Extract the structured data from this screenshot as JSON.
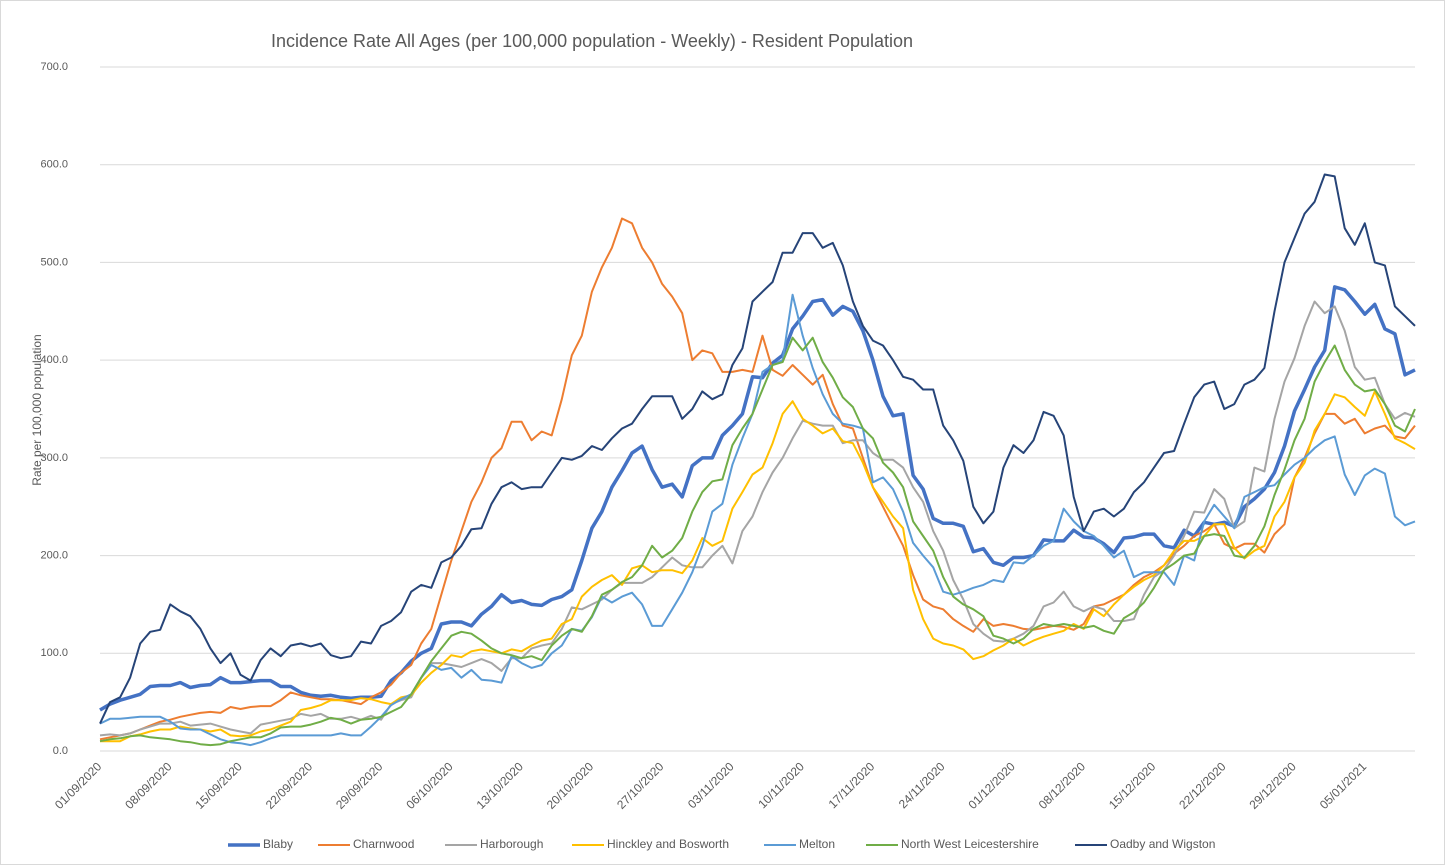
{
  "chart_data": {
    "type": "line",
    "title": "Incidence Rate All Ages (per 100,000 population - Weekly) - Resident Population",
    "y_label": "Rate per 100,000 population",
    "categories": [
      "01/09/2020",
      null,
      null,
      null,
      null,
      null,
      null,
      "08/09/2020",
      null,
      null,
      null,
      null,
      null,
      null,
      "15/09/2020",
      null,
      null,
      null,
      null,
      null,
      null,
      "22/09/2020",
      null,
      null,
      null,
      null,
      null,
      null,
      "29/09/2020",
      null,
      null,
      null,
      null,
      null,
      null,
      "06/10/2020",
      null,
      null,
      null,
      null,
      null,
      null,
      "13/10/2020",
      null,
      null,
      null,
      null,
      null,
      null,
      "20/10/2020",
      null,
      null,
      null,
      null,
      null,
      null,
      "27/10/2020",
      null,
      null,
      null,
      null,
      null,
      null,
      "03/11/2020",
      null,
      null,
      null,
      null,
      null,
      null,
      "10/11/2020",
      null,
      null,
      null,
      null,
      null,
      null,
      "17/11/2020",
      null,
      null,
      null,
      null,
      null,
      null,
      "24/11/2020",
      null,
      null,
      null,
      null,
      null,
      null,
      "01/12/2020",
      null,
      null,
      null,
      null,
      null,
      null,
      "08/12/2020",
      null,
      null,
      null,
      null,
      null,
      null,
      "15/12/2020",
      null,
      null,
      null,
      null,
      null,
      null,
      "22/12/2020",
      null,
      null,
      null,
      null,
      null,
      null,
      "29/12/2020",
      null,
      null,
      null,
      null,
      null,
      null,
      "05/01/2021",
      null,
      null,
      null,
      null,
      null
    ],
    "ylim": [
      0,
      700
    ],
    "yticks": [
      {
        "value": 0,
        "label": "0.0"
      },
      {
        "value": 100,
        "label": "100.0"
      },
      {
        "value": 200,
        "label": "200.0"
      },
      {
        "value": 300,
        "label": "300.0"
      },
      {
        "value": 400,
        "label": "400.0"
      },
      {
        "value": 500,
        "label": "500.0"
      },
      {
        "value": 600,
        "label": "600.0"
      },
      {
        "value": 700,
        "label": "700.0"
      }
    ],
    "grid": true,
    "legend": "bottom",
    "series": [
      {
        "name": "Blaby",
        "color": "#4472c4",
        "values": [
          42,
          48,
          52,
          55,
          58,
          66,
          67,
          67,
          70,
          65,
          67,
          68,
          75,
          70,
          70,
          71,
          72,
          72,
          66,
          66,
          60,
          57,
          56,
          57,
          55,
          54,
          55,
          55,
          56,
          72,
          80,
          92,
          100,
          105,
          130,
          132,
          132,
          128,
          140,
          148,
          160,
          152,
          154,
          150,
          149,
          155,
          158,
          165,
          195,
          228,
          245,
          270,
          287,
          305,
          312,
          288,
          270,
          273,
          260,
          292,
          300,
          300,
          323,
          333,
          345,
          383,
          382,
          397,
          405,
          432,
          445,
          460,
          462,
          446,
          455,
          450,
          430,
          400,
          363,
          343,
          345,
          282,
          268,
          238,
          233,
          233,
          230,
          204,
          207,
          193,
          190,
          198,
          198,
          200,
          216,
          215,
          215,
          226,
          219,
          218,
          212,
          203,
          218,
          219,
          222,
          222,
          210,
          208,
          226,
          220,
          234,
          232,
          234,
          230,
          250,
          258,
          268,
          285,
          312,
          348,
          370,
          393,
          410,
          475,
          472,
          460,
          447,
          457,
          432,
          427,
          385,
          390
        ]
      },
      {
        "name": "Charnwood",
        "color": "#ed7d31",
        "values": [
          12,
          14,
          16,
          18,
          22,
          26,
          30,
          32,
          35,
          37,
          39,
          40,
          39,
          45,
          43,
          45,
          46,
          46,
          52,
          60,
          57,
          55,
          53,
          53,
          52,
          50,
          48,
          55,
          60,
          68,
          80,
          88,
          110,
          125,
          160,
          195,
          225,
          255,
          275,
          300,
          310,
          337,
          337,
          318,
          327,
          323,
          360,
          405,
          425,
          470,
          495,
          515,
          545,
          540,
          515,
          500,
          478,
          465,
          448,
          400,
          410,
          407,
          388,
          388,
          390,
          388,
          425,
          390,
          384,
          395,
          385,
          375,
          385,
          355,
          333,
          330,
          300,
          270,
          250,
          230,
          210,
          180,
          155,
          148,
          145,
          135,
          128,
          122,
          135,
          128,
          130,
          128,
          125,
          124,
          126,
          128,
          127,
          124,
          130,
          148,
          150,
          155,
          160,
          170,
          178,
          183,
          190,
          202,
          210,
          220,
          225,
          232,
          212,
          207,
          212,
          212,
          203,
          222,
          232,
          280,
          300,
          325,
          345,
          345,
          335,
          340,
          325,
          330,
          333,
          322,
          320,
          333
        ]
      },
      {
        "name": "Harborough",
        "color": "#a5a5a5",
        "values": [
          16,
          17,
          16,
          18,
          22,
          25,
          28,
          28,
          30,
          26,
          27,
          28,
          25,
          22,
          20,
          18,
          27,
          29,
          31,
          33,
          38,
          36,
          38,
          33,
          33,
          35,
          32,
          36,
          32,
          48,
          52,
          55,
          75,
          90,
          90,
          88,
          86,
          90,
          94,
          90,
          82,
          95,
          95,
          105,
          108,
          110,
          125,
          147,
          145,
          150,
          155,
          165,
          172,
          172,
          172,
          178,
          188,
          198,
          190,
          188,
          188,
          200,
          210,
          192,
          225,
          240,
          265,
          285,
          300,
          320,
          338,
          335,
          333,
          333,
          315,
          318,
          318,
          305,
          298,
          298,
          290,
          270,
          255,
          225,
          205,
          175,
          155,
          130,
          120,
          113,
          112,
          115,
          120,
          128,
          148,
          152,
          163,
          148,
          143,
          148,
          145,
          133,
          133,
          135,
          160,
          178,
          185,
          200,
          220,
          245,
          244,
          268,
          258,
          228,
          235,
          290,
          286,
          340,
          378,
          402,
          435,
          460,
          448,
          455,
          430,
          393,
          380,
          382,
          355,
          340,
          346,
          342
        ]
      },
      {
        "name": "Hinckley and Bosworth",
        "color": "#ffc000",
        "values": [
          10,
          10,
          10,
          15,
          17,
          20,
          22,
          22,
          25,
          23,
          22,
          20,
          22,
          16,
          15,
          16,
          20,
          22,
          26,
          30,
          42,
          44,
          47,
          52,
          52,
          52,
          54,
          53,
          50,
          48,
          55,
          57,
          70,
          80,
          88,
          98,
          96,
          102,
          104,
          102,
          100,
          104,
          102,
          108,
          113,
          115,
          130,
          135,
          158,
          168,
          175,
          180,
          170,
          187,
          190,
          183,
          185,
          185,
          182,
          195,
          218,
          210,
          215,
          248,
          265,
          283,
          290,
          315,
          345,
          358,
          340,
          333,
          325,
          330,
          317,
          315,
          295,
          270,
          255,
          240,
          228,
          165,
          135,
          115,
          110,
          108,
          104,
          94,
          97,
          103,
          108,
          115,
          108,
          113,
          117,
          120,
          123,
          130,
          125,
          145,
          138,
          150,
          160,
          168,
          175,
          180,
          190,
          205,
          215,
          215,
          220,
          232,
          232,
          208,
          197,
          205,
          210,
          240,
          255,
          280,
          295,
          328,
          345,
          365,
          362,
          352,
          343,
          368,
          345,
          320,
          315,
          309
        ]
      },
      {
        "name": "Melton",
        "color": "#5b9bd5",
        "values": [
          28,
          33,
          33,
          34,
          35,
          35,
          35,
          30,
          23,
          22,
          22,
          17,
          12,
          9,
          8,
          6,
          9,
          13,
          16,
          16,
          16,
          16,
          16,
          16,
          18,
          16,
          16,
          25,
          35,
          47,
          53,
          58,
          75,
          88,
          83,
          85,
          75,
          83,
          73,
          72,
          70,
          97,
          90,
          85,
          88,
          100,
          108,
          125,
          123,
          137,
          158,
          152,
          158,
          162,
          150,
          128,
          128,
          145,
          162,
          183,
          210,
          245,
          253,
          293,
          320,
          345,
          388,
          395,
          400,
          467,
          425,
          392,
          365,
          345,
          335,
          333,
          330,
          275,
          280,
          268,
          245,
          213,
          200,
          188,
          163,
          160,
          163,
          167,
          170,
          175,
          173,
          193,
          192,
          200,
          210,
          215,
          248,
          235,
          225,
          220,
          210,
          198,
          205,
          178,
          183,
          183,
          183,
          170,
          200,
          195,
          235,
          252,
          240,
          228,
          260,
          265,
          270,
          272,
          283,
          293,
          300,
          310,
          318,
          322,
          283,
          262,
          282,
          289,
          284,
          240,
          231,
          235
        ]
      },
      {
        "name": "North West Leicestershire",
        "color": "#70ad47",
        "values": [
          10,
          12,
          13,
          15,
          16,
          14,
          13,
          12,
          10,
          9,
          7,
          6,
          7,
          10,
          12,
          14,
          14,
          18,
          24,
          25,
          25,
          27,
          30,
          34,
          32,
          28,
          32,
          33,
          35,
          40,
          45,
          58,
          75,
          92,
          105,
          118,
          122,
          120,
          113,
          105,
          100,
          98,
          95,
          97,
          93,
          108,
          118,
          125,
          122,
          138,
          160,
          165,
          173,
          178,
          190,
          210,
          198,
          205,
          218,
          245,
          265,
          276,
          278,
          313,
          330,
          345,
          370,
          395,
          398,
          423,
          410,
          423,
          398,
          382,
          362,
          352,
          330,
          320,
          295,
          285,
          270,
          235,
          220,
          205,
          178,
          158,
          150,
          145,
          138,
          118,
          115,
          110,
          115,
          125,
          130,
          128,
          130,
          128,
          126,
          128,
          123,
          120,
          136,
          142,
          152,
          167,
          185,
          192,
          200,
          202,
          220,
          222,
          220,
          200,
          198,
          210,
          230,
          262,
          288,
          318,
          340,
          378,
          398,
          415,
          390,
          375,
          368,
          370,
          355,
          333,
          327,
          350
        ]
      },
      {
        "name": "Oadby and Wigston",
        "color": "#264478",
        "values": [
          28,
          50,
          55,
          75,
          110,
          122,
          124,
          150,
          143,
          138,
          125,
          105,
          90,
          100,
          78,
          72,
          93,
          105,
          97,
          108,
          110,
          107,
          110,
          98,
          95,
          97,
          112,
          110,
          128,
          133,
          142,
          163,
          170,
          167,
          193,
          198,
          210,
          227,
          228,
          253,
          270,
          275,
          268,
          270,
          270,
          285,
          300,
          298,
          302,
          312,
          308,
          320,
          330,
          335,
          350,
          363,
          363,
          363,
          340,
          350,
          368,
          360,
          365,
          395,
          412,
          460,
          470,
          480,
          510,
          510,
          530,
          530,
          515,
          520,
          497,
          460,
          435,
          420,
          415,
          400,
          383,
          380,
          370,
          370,
          333,
          318,
          297,
          250,
          233,
          245,
          290,
          313,
          305,
          318,
          347,
          343,
          323,
          260,
          225,
          245,
          248,
          240,
          248,
          265,
          275,
          290,
          305,
          307,
          335,
          362,
          375,
          378,
          350,
          355,
          375,
          380,
          392,
          450,
          500,
          525,
          550,
          562,
          590,
          588,
          535,
          518,
          540,
          500,
          497,
          455,
          445,
          435
        ]
      }
    ]
  }
}
